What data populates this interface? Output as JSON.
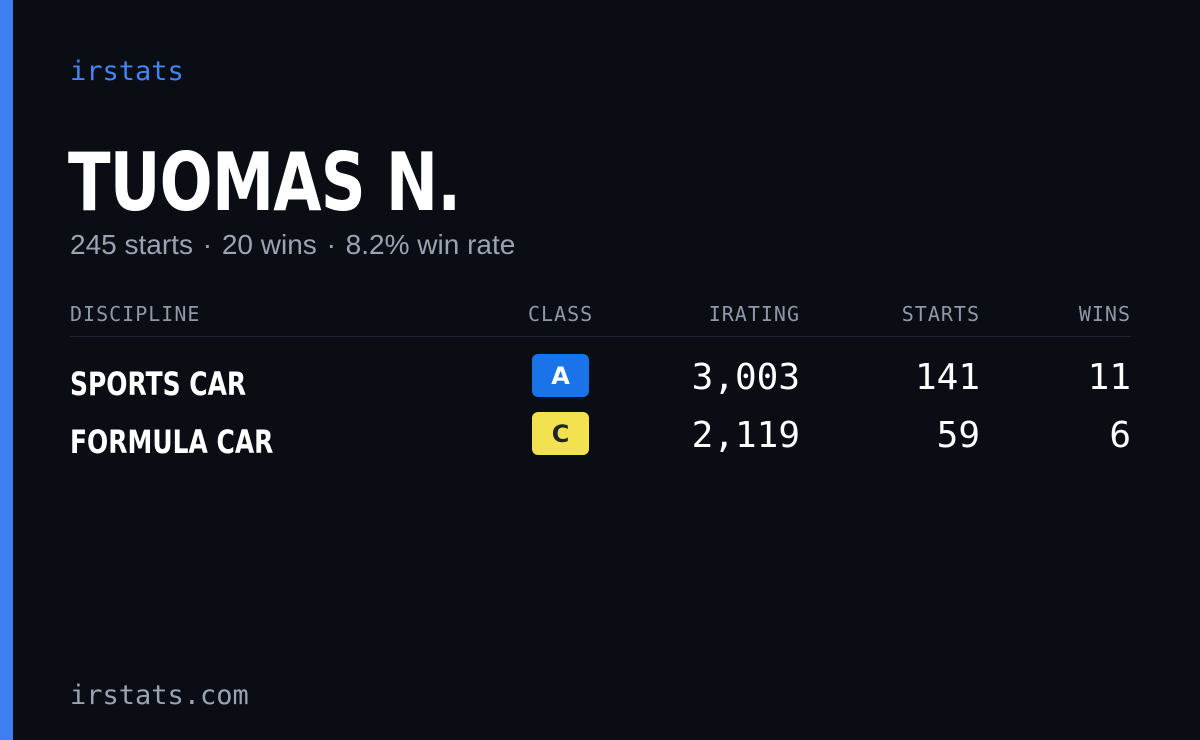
{
  "brand": "irstats",
  "player": {
    "name": "TUOMAS N."
  },
  "summary": {
    "starts": "245 starts",
    "wins": "20 wins",
    "win_rate": "8.2% win rate",
    "separator": "·"
  },
  "table": {
    "headers": {
      "discipline": "DISCIPLINE",
      "class": "CLASS",
      "irating": "IRATING",
      "starts": "STARTS",
      "wins": "WINS"
    },
    "rows": [
      {
        "discipline": "SPORTS CAR",
        "class": "A",
        "class_color": "#1a73e8",
        "irating": "3,003",
        "starts": "141",
        "wins": "11"
      },
      {
        "discipline": "FORMULA CAR",
        "class": "C",
        "class_color": "#f2e250",
        "irating": "2,119",
        "starts": "59",
        "wins": "6"
      }
    ]
  },
  "footer": {
    "url": "irstats.com"
  },
  "colors": {
    "background": "#0a0d14",
    "accent": "#3d7ff0",
    "brand": "#4285f4",
    "muted_text": "#9aa3b2"
  }
}
